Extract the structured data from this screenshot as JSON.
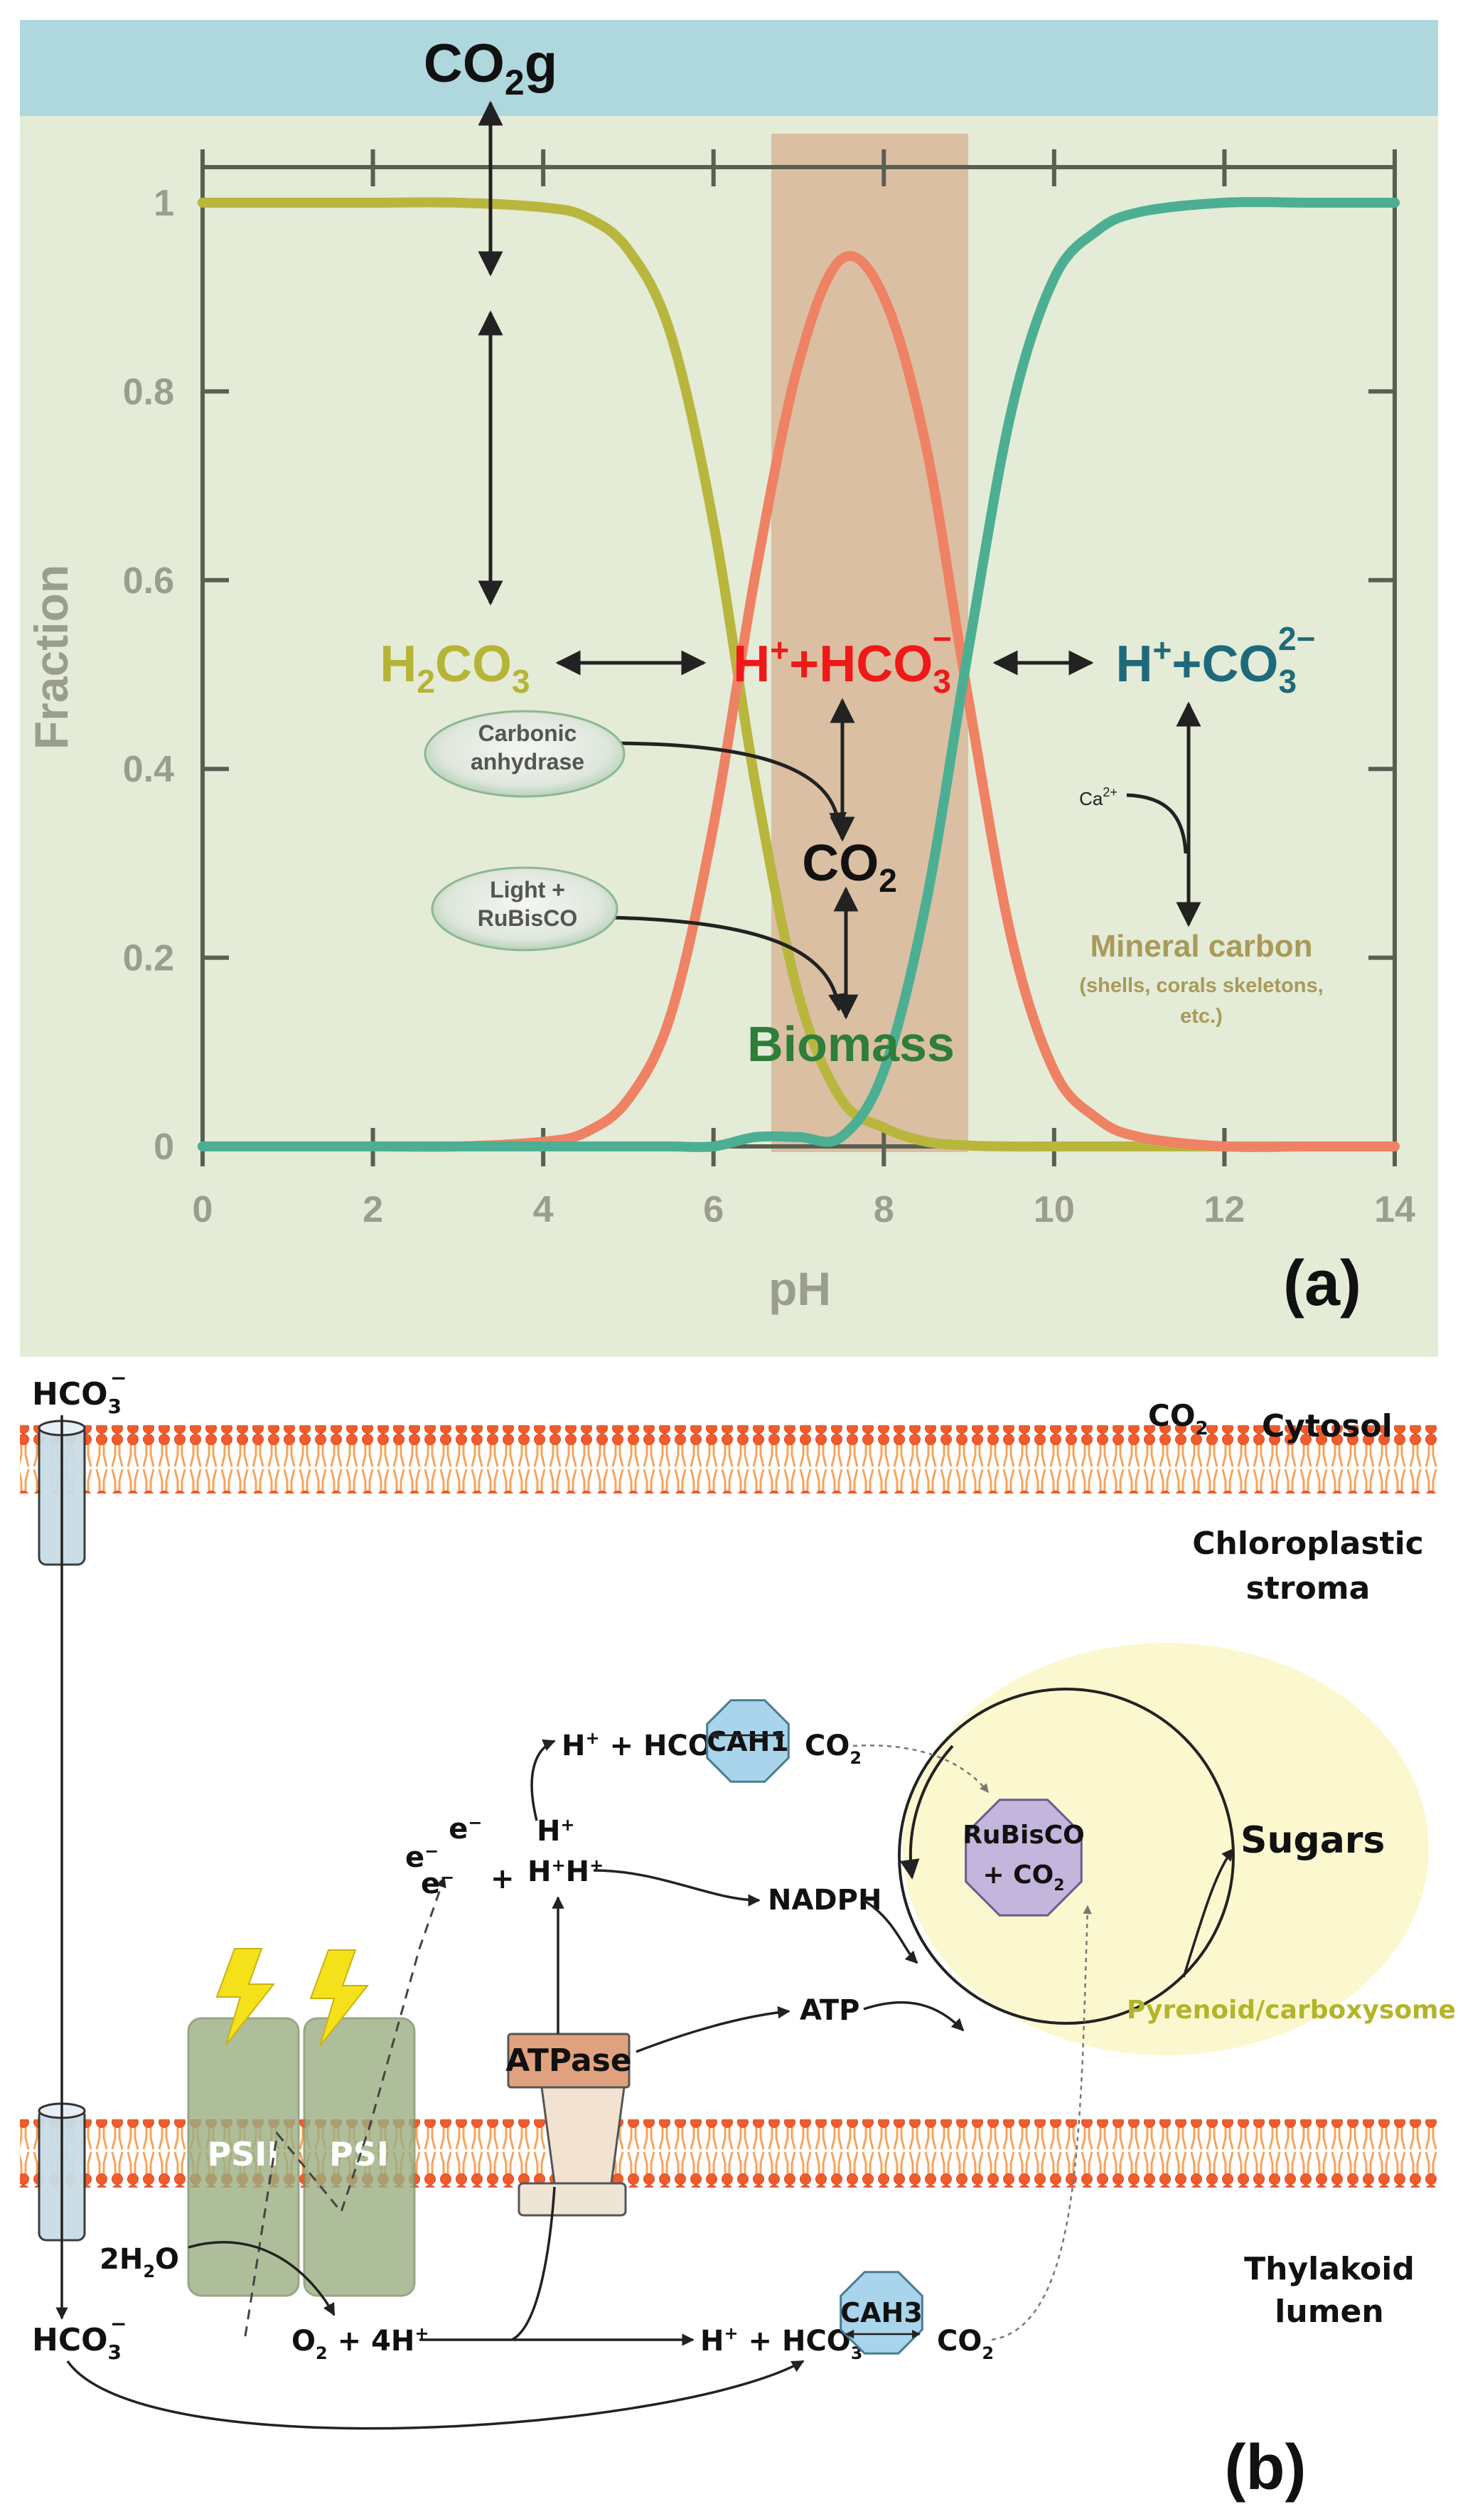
{
  "panel_a": {
    "label": "(a)",
    "gas_label": {
      "main": "CO",
      "sub": "2",
      "tail": "g"
    },
    "y_axis_label": "Fraction",
    "x_axis_label": "pH",
    "y_ticks": [
      "0",
      "0.2",
      "0.4",
      "0.6",
      "0.8",
      "1"
    ],
    "x_ticks": [
      "0",
      "2",
      "4",
      "6",
      "8",
      "10",
      "12",
      "14"
    ],
    "species": {
      "h2co3": {
        "a": "H",
        "sub": "2",
        "b": "CO",
        "sub2": "3",
        "color": "#b5b436"
      },
      "hco3": {
        "a": "H",
        "sup": "+",
        "b": "+HCO",
        "sub": "3",
        "sup2": "−",
        "color": "#f01818"
      },
      "co3": {
        "a": "H",
        "sup": "+",
        "b": "+CO",
        "sub": "3",
        "sup2": "2−",
        "color": "#1f6a7a"
      },
      "co2": {
        "a": "CO",
        "sub": "2",
        "color": "#111111"
      },
      "biomass": {
        "text": "Biomass",
        "color": "#2e7d3a"
      }
    },
    "enzyme_carbonic": [
      "Carbonic",
      "anhydrase"
    ],
    "enzyme_rubisco": [
      "Light +",
      "RuBisCO"
    ],
    "calcium": {
      "a": "Ca",
      "sup": "2+"
    },
    "mineral": {
      "title": "Mineral carbon",
      "note1": "(shells, corals skeletons,",
      "note2": "etc.)",
      "color": "#a89a5a"
    },
    "colors": {
      "bg": "#e4ebd6",
      "top_band": "#aed7de",
      "band": "#d9b79a",
      "axis": "#5a5f52",
      "tick_label": "#9a9d90",
      "curve_h2co3": "#b9b63e",
      "curve_hco3": "#ef8264",
      "curve_co3": "#4caf93"
    }
  },
  "chart_data": {
    "type": "line",
    "title": "",
    "xlabel": "pH",
    "ylabel": "Fraction",
    "xlim": [
      0,
      14
    ],
    "ylim": [
      0,
      1
    ],
    "x": [
      0,
      1,
      2,
      3,
      4,
      4.5,
      5,
      5.5,
      6,
      6.5,
      7,
      7.5,
      8,
      8.5,
      9,
      9.5,
      10,
      10.5,
      11,
      12,
      13,
      14
    ],
    "series": [
      {
        "values": [
          1,
          1,
          1,
          1,
          0.995,
          0.985,
          0.95,
          0.86,
          0.66,
          0.38,
          0.16,
          0.05,
          0.02,
          0.005,
          0.001,
          0,
          0,
          0,
          0,
          0,
          0,
          0
        ]
      },
      {
        "values": [
          0,
          0,
          0,
          0,
          0.005,
          0.015,
          0.05,
          0.14,
          0.34,
          0.61,
          0.83,
          0.94,
          0.9,
          0.74,
          0.47,
          0.22,
          0.08,
          0.03,
          0.01,
          0,
          0,
          0
        ]
      },
      {
        "values": [
          0,
          0,
          0,
          0,
          0,
          0,
          0,
          0,
          0,
          0.01,
          0.01,
          0.01,
          0.08,
          0.26,
          0.53,
          0.78,
          0.92,
          0.97,
          0.99,
          1,
          1,
          1
        ]
      }
    ],
    "highlight_band_x": [
      6.7,
      9
    ],
    "grid": false
  },
  "panel_b": {
    "label": "(b)",
    "hco3_top": {
      "a": "HCO",
      "sub": "3",
      "sup": "−"
    },
    "co2_top": {
      "a": "CO",
      "sub": "2"
    },
    "cytosol": "Cytosol",
    "stroma": [
      "Chloroplastic",
      "stroma"
    ],
    "thylakoid": [
      "Thylakoid",
      "lumen"
    ],
    "cah1": "CAH1",
    "cah3": "CAH3",
    "rubisco": [
      "RuBisCO",
      "+ CO"
    ],
    "rubisco_sub": "2",
    "sugars": "Sugars",
    "pyrenoid": "Pyrenoid/carboxysome",
    "nadph": "NADPH",
    "atp": "ATP",
    "atpase": "ATPase",
    "psii": "PSII",
    "psi": "PSI",
    "water": {
      "a": "2H",
      "sub": "2",
      "b": "O"
    },
    "oxygen": {
      "a": "O",
      "sub": "2",
      "b": " + 4H",
      "sup": "+"
    },
    "protons_stroma": {
      "a": "H",
      "sup": "+",
      "b": " + HCO",
      "sub": "3",
      "sup2": "−"
    },
    "co2_stroma": {
      "a": "CO",
      "sub": "2"
    },
    "protons_lumen": {
      "a": "H",
      "sup": "+",
      "b": " + HCO",
      "sub": "3",
      "sup2": "−"
    },
    "co2_lumen": {
      "a": "CO",
      "sub": "2"
    },
    "hco3_bottom": {
      "a": "HCO",
      "sub": "3",
      "sup": "−"
    },
    "electrons": {
      "e": "e",
      "sup": "−"
    },
    "protons_cluster": {
      "h": "H",
      "sup": "+"
    },
    "plus": "+",
    "colors": {
      "membrane_head": "#f25b2c",
      "membrane_tail": "#f7a35a",
      "pyrenoid": "#fbf8cf",
      "pyrenoid_text": "#b4b42a",
      "cah": "#a9d5ec",
      "rubisco": "#c4b5dd",
      "atpase": "#e0a27e",
      "photosystem": "#9bae82",
      "lightning": "#f5e11a"
    }
  }
}
